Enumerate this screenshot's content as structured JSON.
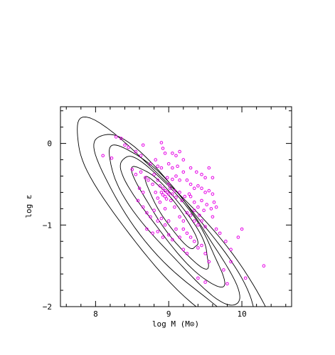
{
  "chart_data": {
    "type": "scatter",
    "xlabel": "log M (M⊙)",
    "ylabel": "log ε",
    "xlim": [
      7.52,
      10.68
    ],
    "ylim": [
      -2.0,
      0.45
    ],
    "xticks_major": [
      8,
      9,
      10
    ],
    "xticks_minor_step": 0.2,
    "xtick_labels": [
      "8",
      "9",
      "10"
    ],
    "yticks_major": [
      -2,
      -1,
      0
    ],
    "yticks_minor_step": 0.2,
    "ytick_labels": [
      "−2",
      "−1",
      "0"
    ],
    "grid": false,
    "legend": "none",
    "marker_color": "#e600e6",
    "contour_color": "#000000",
    "series": [
      {
        "kind": "points",
        "points": [
          [
            8.28,
            0.08
          ],
          [
            8.35,
            0.06
          ],
          [
            8.4,
            -0.02
          ],
          [
            8.45,
            -0.05
          ],
          [
            8.55,
            -0.1
          ],
          [
            8.62,
            -0.15
          ],
          [
            8.22,
            -0.18
          ],
          [
            8.1,
            -0.15
          ],
          [
            8.65,
            -0.02
          ],
          [
            8.9,
            0.01
          ],
          [
            8.92,
            -0.06
          ],
          [
            8.95,
            -0.12
          ],
          [
            9.05,
            -0.12
          ],
          [
            9.1,
            -0.15
          ],
          [
            9.15,
            -0.1
          ],
          [
            9.2,
            -0.2
          ],
          [
            8.75,
            -0.25
          ],
          [
            8.82,
            -0.2
          ],
          [
            8.85,
            -0.28
          ],
          [
            8.9,
            -0.3
          ],
          [
            9.0,
            -0.25
          ],
          [
            9.05,
            -0.3
          ],
          [
            9.12,
            -0.28
          ],
          [
            9.2,
            -0.35
          ],
          [
            9.3,
            -0.3
          ],
          [
            9.38,
            -0.35
          ],
          [
            9.45,
            -0.38
          ],
          [
            9.5,
            -0.42
          ],
          [
            8.5,
            -0.32
          ],
          [
            8.55,
            -0.38
          ],
          [
            8.62,
            -0.35
          ],
          [
            8.68,
            -0.42
          ],
          [
            8.72,
            -0.45
          ],
          [
            8.78,
            -0.5
          ],
          [
            8.8,
            -0.38
          ],
          [
            8.85,
            -0.45
          ],
          [
            8.88,
            -0.52
          ],
          [
            8.92,
            -0.55
          ],
          [
            8.95,
            -0.58
          ],
          [
            8.98,
            -0.6
          ],
          [
            9.0,
            -0.5
          ],
          [
            9.02,
            -0.55
          ],
          [
            9.05,
            -0.62
          ],
          [
            9.08,
            -0.58
          ],
          [
            9.1,
            -0.66
          ],
          [
            9.15,
            -0.6
          ],
          [
            9.18,
            -0.7
          ],
          [
            9.22,
            -0.65
          ],
          [
            8.9,
            -0.6
          ],
          [
            8.92,
            -0.63
          ],
          [
            8.95,
            -0.65
          ],
          [
            8.97,
            -0.68
          ],
          [
            9.0,
            -0.62
          ],
          [
            9.03,
            -0.7
          ],
          [
            8.85,
            -0.67
          ],
          [
            8.88,
            -0.72
          ],
          [
            9.25,
            -0.45
          ],
          [
            9.3,
            -0.5
          ],
          [
            9.35,
            -0.55
          ],
          [
            9.4,
            -0.52
          ],
          [
            9.45,
            -0.55
          ],
          [
            9.5,
            -0.6
          ],
          [
            9.55,
            -0.58
          ],
          [
            9.6,
            -0.62
          ],
          [
            9.3,
            -0.65
          ],
          [
            9.35,
            -0.72
          ],
          [
            9.4,
            -0.78
          ],
          [
            9.45,
            -0.7
          ],
          [
            9.48,
            -0.82
          ],
          [
            9.52,
            -0.75
          ],
          [
            9.58,
            -0.8
          ],
          [
            9.6,
            -0.9
          ],
          [
            9.25,
            -0.85
          ],
          [
            9.3,
            -0.88
          ],
          [
            9.35,
            -0.95
          ],
          [
            9.4,
            -1.0
          ],
          [
            9.45,
            -0.95
          ],
          [
            9.5,
            -1.02
          ],
          [
            9.2,
            -1.05
          ],
          [
            9.25,
            -1.1
          ],
          [
            8.65,
            -0.78
          ],
          [
            8.7,
            -0.85
          ],
          [
            8.75,
            -0.9
          ],
          [
            8.8,
            -0.82
          ],
          [
            8.85,
            -0.95
          ],
          [
            8.9,
            -0.92
          ],
          [
            8.95,
            -1.0
          ],
          [
            9.0,
            -0.95
          ],
          [
            8.7,
            -1.05
          ],
          [
            8.78,
            -1.1
          ],
          [
            8.85,
            -1.08
          ],
          [
            8.92,
            -1.15
          ],
          [
            9.0,
            -1.12
          ],
          [
            9.05,
            -1.18
          ],
          [
            9.1,
            -1.05
          ],
          [
            9.15,
            -1.15
          ],
          [
            9.3,
            -1.15
          ],
          [
            9.35,
            -1.2
          ],
          [
            9.4,
            -1.28
          ],
          [
            9.45,
            -1.25
          ],
          [
            9.2,
            -1.3
          ],
          [
            9.25,
            -1.35
          ],
          [
            9.5,
            -1.35
          ],
          [
            9.55,
            -1.45
          ],
          [
            9.65,
            -1.05
          ],
          [
            9.7,
            -1.1
          ],
          [
            9.78,
            -1.2
          ],
          [
            9.85,
            -1.3
          ],
          [
            9.95,
            -1.15
          ],
          [
            10.0,
            -1.05
          ],
          [
            9.4,
            -1.65
          ],
          [
            9.5,
            -1.7
          ],
          [
            9.75,
            -1.55
          ],
          [
            9.8,
            -1.72
          ],
          [
            9.55,
            -0.3
          ],
          [
            9.6,
            -0.42
          ],
          [
            9.1,
            -0.4
          ],
          [
            9.15,
            -0.45
          ],
          [
            8.98,
            -0.42
          ],
          [
            9.05,
            -0.44
          ],
          [
            8.6,
            -0.55
          ],
          [
            8.65,
            -0.6
          ],
          [
            8.58,
            -0.7
          ],
          [
            9.62,
            -0.72
          ],
          [
            9.65,
            -0.78
          ],
          [
            9.2,
            -0.95
          ],
          [
            9.15,
            -0.9
          ],
          [
            8.95,
            -0.8
          ],
          [
            10.3,
            -1.5
          ],
          [
            10.05,
            -1.65
          ],
          [
            9.85,
            -1.45
          ],
          [
            9.35,
            -0.82
          ],
          [
            9.42,
            -0.88
          ],
          [
            9.28,
            -0.62
          ],
          [
            8.82,
            -0.6
          ],
          [
            9.08,
            -0.78
          ]
        ]
      },
      {
        "kind": "contours",
        "levels": [
          {
            "cx": 9.05,
            "cy": -1.1,
            "a": 1.57,
            "b": 0.33,
            "rot": -0.55
          },
          {
            "cx": 9.05,
            "cy": -1.03,
            "a": 1.3,
            "b": 0.28,
            "rot": -0.58
          },
          {
            "cx": 9.05,
            "cy": -0.98,
            "a": 1.07,
            "b": 0.23,
            "rot": -0.6
          },
          {
            "cx": 9.05,
            "cy": -0.93,
            "a": 0.85,
            "b": 0.185,
            "rot": -0.62
          },
          {
            "cx": 9.05,
            "cy": -0.9,
            "a": 0.64,
            "b": 0.14,
            "rot": -0.64
          },
          {
            "cx": 9.05,
            "cy": -0.87,
            "a": 0.44,
            "b": 0.095,
            "rot": -0.66
          }
        ]
      }
    ]
  }
}
